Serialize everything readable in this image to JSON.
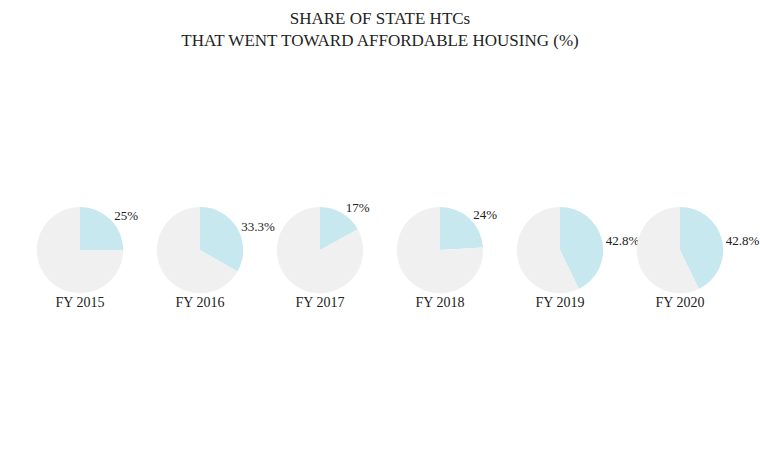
{
  "chart_data": [
    {
      "type": "pie",
      "title": "SHARE OF STATE HTCs",
      "subtitle": "THAT WENT TOWARD AFFORDABLE HOUSING (%)",
      "xlabel": "FY 2015",
      "values": [
        25.0,
        75.0
      ],
      "value_labels": [
        "25%",
        null
      ],
      "colors": [
        "#c8e8f0",
        "#f0f0f0"
      ]
    },
    {
      "type": "pie",
      "xlabel": "FY 2016",
      "values": [
        33.3,
        66.7
      ],
      "value_labels": [
        "33.3%",
        null
      ],
      "colors": [
        "#c8e8f0",
        "#f0f0f0"
      ]
    },
    {
      "type": "pie",
      "xlabel": "FY 2017",
      "values": [
        17.0,
        83.0
      ],
      "value_labels": [
        "17%",
        null
      ],
      "colors": [
        "#c8e8f0",
        "#f0f0f0"
      ]
    },
    {
      "type": "pie",
      "xlabel": "FY 2018",
      "values": [
        24.0,
        76.0
      ],
      "value_labels": [
        "24%",
        null
      ],
      "colors": [
        "#c8e8f0",
        "#f0f0f0"
      ]
    },
    {
      "type": "pie",
      "xlabel": "FY 2019",
      "values": [
        42.8,
        57.2
      ],
      "value_labels": [
        "42.8%",
        null
      ],
      "colors": [
        "#c8e8f0",
        "#f0f0f0"
      ]
    },
    {
      "type": "pie",
      "xlabel": "FY 2020",
      "values": [
        42.8,
        57.2
      ],
      "value_labels": [
        "42.8%",
        null
      ],
      "colors": [
        "#c8e8f0",
        "#f0f0f0"
      ]
    }
  ]
}
